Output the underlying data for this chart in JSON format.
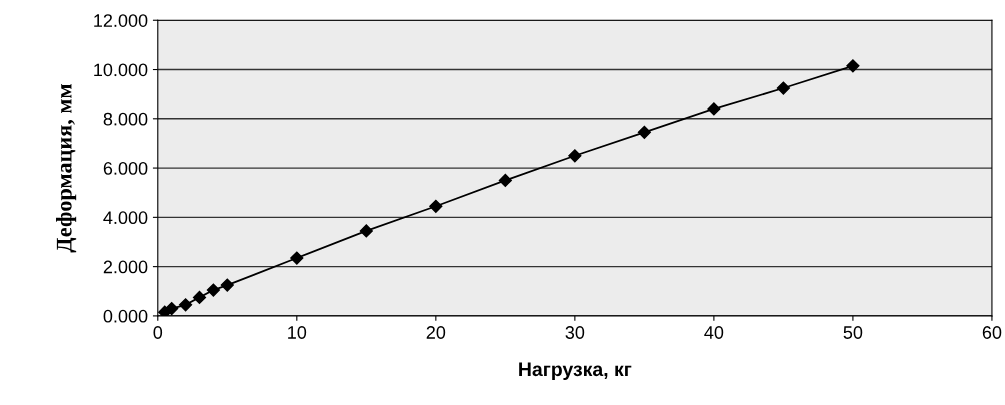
{
  "chart_data": {
    "type": "line",
    "xlabel": "Нагрузка, кг",
    "ylabel": "Деформация, мм",
    "x": [
      0.5,
      1,
      2,
      3,
      4,
      5,
      10,
      15,
      20,
      25,
      30,
      35,
      40,
      45,
      50
    ],
    "series": [
      {
        "color": "#000000",
        "values": [
          0.15,
          0.3,
          0.45,
          0.75,
          1.05,
          1.25,
          2.35,
          3.45,
          4.45,
          5.5,
          6.5,
          7.45,
          8.4,
          9.25,
          10.15
        ]
      }
    ],
    "xlim": [
      0,
      60
    ],
    "xticks": [
      0,
      10,
      20,
      30,
      40,
      50,
      60
    ],
    "ylim": [
      0,
      12
    ],
    "yticks": [
      {
        "value": 0,
        "label": "0.000"
      },
      {
        "value": 2,
        "label": "2.000"
      },
      {
        "value": 4,
        "label": "4.000"
      },
      {
        "value": 6,
        "label": "6.000"
      },
      {
        "value": 8,
        "label": "8.000"
      },
      {
        "value": 10,
        "label": "10.000"
      },
      {
        "value": 12,
        "label": "12.000"
      }
    ],
    "grid": "y",
    "marker": "diamond",
    "line_style": "solid",
    "legend": false
  }
}
